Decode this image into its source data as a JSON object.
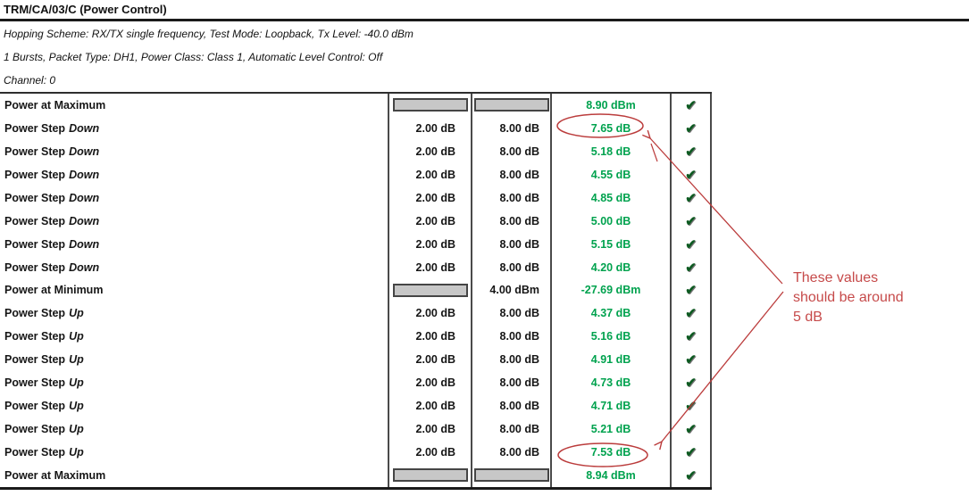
{
  "header": {
    "title": "TRM/CA/03/C (Power Control)",
    "param_line_1": "Hopping Scheme: RX/TX single frequency, Test Mode: Loopback, Tx Level: -40.0 dBm",
    "param_line_2": "1 Bursts,  Packet Type: DH1, Power Class: Class 1, Automatic Level Control: Off",
    "param_line_3": "Channel:  0"
  },
  "table": {
    "rows": [
      {
        "label": "Power at Maximum",
        "qualifier": "",
        "limit1": "",
        "limit1_box": true,
        "limit2": "",
        "limit2_box": true,
        "value": "8.90 dBm",
        "check": "✔",
        "circled": false
      },
      {
        "label": "Power Step",
        "qualifier": "Down",
        "limit1": "2.00 dB",
        "limit1_box": false,
        "limit2": "8.00 dB",
        "limit2_box": false,
        "value": "7.65 dB",
        "check": "✔",
        "circled": true
      },
      {
        "label": "Power Step",
        "qualifier": "Down",
        "limit1": "2.00 dB",
        "limit1_box": false,
        "limit2": "8.00 dB",
        "limit2_box": false,
        "value": "5.18 dB",
        "check": "✔",
        "circled": false
      },
      {
        "label": "Power Step",
        "qualifier": "Down",
        "limit1": "2.00 dB",
        "limit1_box": false,
        "limit2": "8.00 dB",
        "limit2_box": false,
        "value": "4.55 dB",
        "check": "✔",
        "circled": false
      },
      {
        "label": "Power Step",
        "qualifier": "Down",
        "limit1": "2.00 dB",
        "limit1_box": false,
        "limit2": "8.00 dB",
        "limit2_box": false,
        "value": "4.85 dB",
        "check": "✔",
        "circled": false
      },
      {
        "label": "Power Step",
        "qualifier": "Down",
        "limit1": "2.00 dB",
        "limit1_box": false,
        "limit2": "8.00 dB",
        "limit2_box": false,
        "value": "5.00 dB",
        "check": "✔",
        "circled": false
      },
      {
        "label": "Power Step",
        "qualifier": "Down",
        "limit1": "2.00 dB",
        "limit1_box": false,
        "limit2": "8.00 dB",
        "limit2_box": false,
        "value": "5.15 dB",
        "check": "✔",
        "circled": false
      },
      {
        "label": "Power Step",
        "qualifier": "Down",
        "limit1": "2.00 dB",
        "limit1_box": false,
        "limit2": "8.00 dB",
        "limit2_box": false,
        "value": "4.20 dB",
        "check": "✔",
        "circled": false
      },
      {
        "label": "Power at Minimum",
        "qualifier": "",
        "limit1": "",
        "limit1_box": true,
        "limit2": "4.00 dBm",
        "limit2_box": false,
        "value": "-27.69 dBm",
        "check": "✔",
        "circled": false
      },
      {
        "label": "Power Step",
        "qualifier": "Up",
        "limit1": "2.00 dB",
        "limit1_box": false,
        "limit2": "8.00 dB",
        "limit2_box": false,
        "value": "4.37 dB",
        "check": "✔",
        "circled": false
      },
      {
        "label": "Power Step",
        "qualifier": "Up",
        "limit1": "2.00 dB",
        "limit1_box": false,
        "limit2": "8.00 dB",
        "limit2_box": false,
        "value": "5.16 dB",
        "check": "✔",
        "circled": false
      },
      {
        "label": "Power Step",
        "qualifier": "Up",
        "limit1": "2.00 dB",
        "limit1_box": false,
        "limit2": "8.00 dB",
        "limit2_box": false,
        "value": "4.91 dB",
        "check": "✔",
        "circled": false
      },
      {
        "label": "Power Step",
        "qualifier": "Up",
        "limit1": "2.00 dB",
        "limit1_box": false,
        "limit2": "8.00 dB",
        "limit2_box": false,
        "value": "4.73 dB",
        "check": "✔",
        "circled": false
      },
      {
        "label": "Power Step",
        "qualifier": "Up",
        "limit1": "2.00 dB",
        "limit1_box": false,
        "limit2": "8.00 dB",
        "limit2_box": false,
        "value": "4.71 dB",
        "check": "✔",
        "circled": false
      },
      {
        "label": "Power Step",
        "qualifier": "Up",
        "limit1": "2.00 dB",
        "limit1_box": false,
        "limit2": "8.00 dB",
        "limit2_box": false,
        "value": "5.21 dB",
        "check": "✔",
        "circled": false
      },
      {
        "label": "Power Step",
        "qualifier": "Up",
        "limit1": "2.00 dB",
        "limit1_box": false,
        "limit2": "8.00 dB",
        "limit2_box": false,
        "value": "7.53 dB",
        "check": "✔",
        "circled": true
      },
      {
        "label": "Power at Maximum",
        "qualifier": "",
        "limit1": "",
        "limit1_box": true,
        "limit2": "",
        "limit2_box": true,
        "value": "8.94 dBm",
        "check": "✔",
        "circled": false
      }
    ]
  },
  "annotation": {
    "note_line_1": "These values",
    "note_line_2": "should be around",
    "note_line_3": "5 dB"
  },
  "colors": {
    "value_green": "#00a24e",
    "check_green": "#0d5a21",
    "annotation_red": "#c64a4a",
    "box_gray": "#c7c7c7"
  }
}
